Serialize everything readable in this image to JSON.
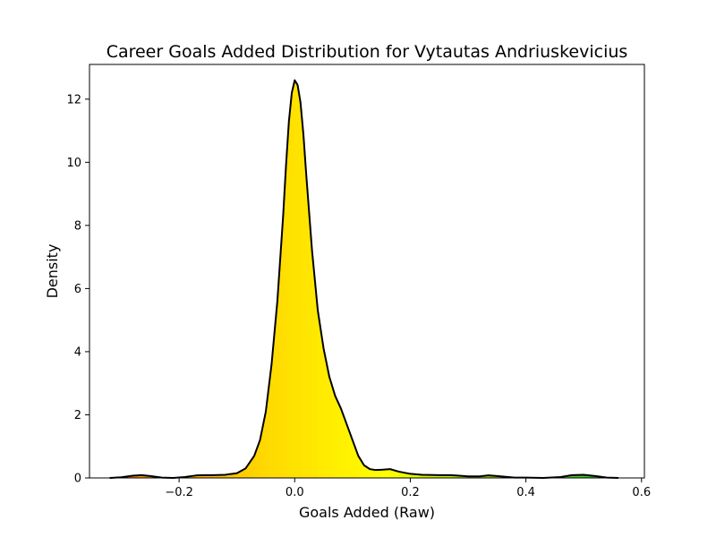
{
  "chart_data": {
    "type": "area",
    "title": "Career Goals Added Distribution for Vytautas Andriuskevicius",
    "xlabel": "Goals Added (Raw)",
    "ylabel": "Density",
    "xlim": [
      -0.355,
      0.605
    ],
    "ylim": [
      0,
      13.1
    ],
    "x_ticks": [
      {
        "value": -0.2,
        "label": "−0.2"
      },
      {
        "value": 0.0,
        "label": "0.0"
      },
      {
        "value": 0.2,
        "label": "0.2"
      },
      {
        "value": 0.4,
        "label": "0.4"
      },
      {
        "value": 0.6,
        "label": "0.6"
      }
    ],
    "y_ticks": [
      {
        "value": 0,
        "label": "0"
      },
      {
        "value": 2,
        "label": "2"
      },
      {
        "value": 4,
        "label": "4"
      },
      {
        "value": 6,
        "label": "6"
      },
      {
        "value": 8,
        "label": "8"
      },
      {
        "value": 10,
        "label": "10"
      },
      {
        "value": 12,
        "label": "12"
      }
    ],
    "grid": false,
    "line_color": "#000000",
    "fill_colormap": [
      "#e8401a",
      "#ff8c00",
      "#ffd700",
      "#ffff00",
      "#7fdc00",
      "#00b050"
    ],
    "fill_range": [
      -0.5,
      0.6
    ],
    "series": [
      {
        "x": [
          -0.32,
          -0.3,
          -0.28,
          -0.265,
          -0.25,
          -0.23,
          -0.21,
          -0.19,
          -0.17,
          -0.155,
          -0.14,
          -0.12,
          -0.1,
          -0.085,
          -0.07,
          -0.06,
          -0.05,
          -0.04,
          -0.03,
          -0.02,
          -0.015,
          -0.01,
          -0.005,
          0.0,
          0.005,
          0.01,
          0.015,
          0.02,
          0.03,
          0.04,
          0.05,
          0.06,
          0.07,
          0.08,
          0.09,
          0.1,
          0.11,
          0.12,
          0.13,
          0.14,
          0.15,
          0.165,
          0.18,
          0.2,
          0.22,
          0.25,
          0.27,
          0.3,
          0.32,
          0.335,
          0.35,
          0.38,
          0.4,
          0.43,
          0.46,
          0.48,
          0.5,
          0.52,
          0.54,
          0.56
        ],
        "y": [
          0.0,
          0.02,
          0.07,
          0.09,
          0.06,
          0.01,
          0.0,
          0.03,
          0.08,
          0.09,
          0.09,
          0.1,
          0.15,
          0.3,
          0.7,
          1.2,
          2.1,
          3.6,
          5.6,
          8.3,
          9.9,
          11.3,
          12.2,
          12.6,
          12.45,
          11.9,
          10.9,
          9.6,
          7.2,
          5.3,
          4.1,
          3.2,
          2.6,
          2.2,
          1.7,
          1.2,
          0.7,
          0.4,
          0.28,
          0.25,
          0.26,
          0.28,
          0.2,
          0.13,
          0.1,
          0.09,
          0.09,
          0.05,
          0.05,
          0.08,
          0.06,
          0.01,
          0.01,
          0.0,
          0.03,
          0.09,
          0.1,
          0.06,
          0.01,
          0.0
        ]
      }
    ]
  }
}
